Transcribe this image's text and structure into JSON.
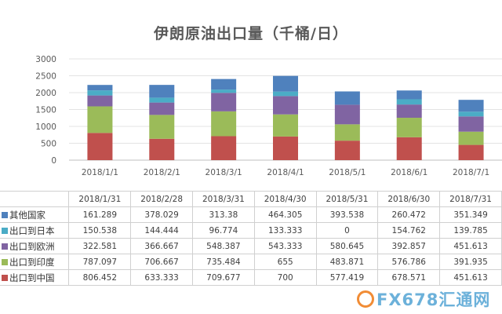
{
  "chart_data": {
    "type": "bar",
    "stacked": true,
    "title": "伊朗原油出口量（千桶/日）",
    "categories": [
      "2018/1/1",
      "2018/2/1",
      "2018/3/1",
      "2018/4/1",
      "2018/5/1",
      "2018/6/1",
      "2018/7/1"
    ],
    "table_columns": [
      "2018/1/31",
      "2018/2/28",
      "2018/3/31",
      "2018/4/30",
      "2018/5/31",
      "2018/6/30",
      "2018/7/31"
    ],
    "ylim": [
      0,
      3000
    ],
    "yticks": [
      "0",
      "500",
      "1000",
      "1500",
      "2000",
      "2500",
      "3000"
    ],
    "grid": true,
    "legend": "table",
    "series": [
      {
        "name": "出口到中国",
        "color": "#c0504d",
        "values": [
          806.452,
          633.333,
          709.677,
          700,
          577.419,
          678.571,
          451.613
        ],
        "labels": [
          "806.452",
          "633.333",
          "709.677",
          "700",
          "577.419",
          "678.571",
          "451.613"
        ]
      },
      {
        "name": "出口到印度",
        "color": "#9bbb59",
        "values": [
          787.097,
          706.667,
          735.484,
          655,
          483.871,
          576.786,
          391.935
        ],
        "labels": [
          "787.097",
          "706.667",
          "735.484",
          "655",
          "483.871",
          "576.786",
          "391.935"
        ]
      },
      {
        "name": "出口到欧洲",
        "color": "#8064a2",
        "values": [
          322.581,
          366.667,
          548.387,
          543.333,
          580.645,
          392.857,
          451.613
        ],
        "labels": [
          "322.581",
          "366.667",
          "548.387",
          "543.333",
          "580.645",
          "392.857",
          "451.613"
        ]
      },
      {
        "name": "出口到日本",
        "color": "#4bacc6",
        "values": [
          150.538,
          144.444,
          96.774,
          133.333,
          0,
          154.762,
          139.785
        ],
        "labels": [
          "150.538",
          "144.444",
          "96.774",
          "133.333",
          "0",
          "154.762",
          "139.785"
        ]
      },
      {
        "name": "其他国家",
        "color": "#4f81bd",
        "values": [
          161.289,
          378.029,
          313.38,
          464.305,
          393.538,
          260.472,
          351.349
        ],
        "labels": [
          "161.289",
          "378.029",
          "313.38",
          "464.305",
          "393.538",
          "260.472",
          "351.349"
        ]
      }
    ],
    "table_row_order": [
      "其他国家",
      "出口到日本",
      "出口到欧洲",
      "出口到印度",
      "出口到中国"
    ]
  },
  "watermark": {
    "text": "FX678汇通网"
  }
}
